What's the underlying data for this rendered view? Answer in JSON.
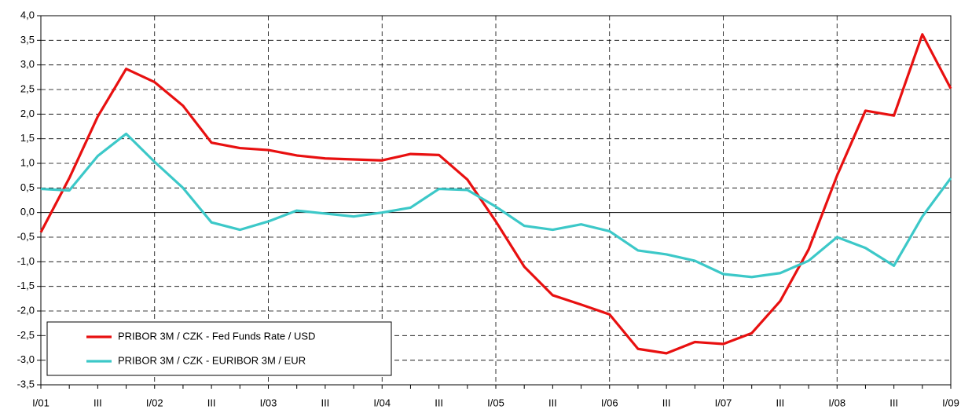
{
  "chart_data": {
    "type": "line",
    "categories": [
      "I/01",
      null,
      "III",
      null,
      "I/02",
      null,
      "III",
      null,
      "I/03",
      null,
      "III",
      null,
      "I/04",
      null,
      "III",
      null,
      "I/05",
      null,
      "III",
      null,
      "I/06",
      null,
      "III",
      null,
      "I/07",
      null,
      "III",
      null,
      "I/08",
      null,
      "III",
      null,
      "I/09"
    ],
    "series": [
      {
        "name": "PRIBOR 3M / CZK - Fed Funds Rate / USD",
        "color": "#e81010",
        "values": [
          -0.4,
          0.7,
          1.95,
          2.92,
          2.65,
          2.17,
          1.42,
          1.31,
          1.27,
          1.16,
          1.1,
          1.08,
          1.06,
          1.19,
          1.17,
          0.67,
          -0.18,
          -1.1,
          -1.68,
          -1.87,
          -2.07,
          -2.77,
          -2.86,
          -2.63,
          -2.67,
          -2.45,
          -1.8,
          -0.75,
          0.75,
          2.07,
          1.97,
          3.62,
          2.52
        ]
      },
      {
        "name": "PRIBOR 3M / CZK - EURIBOR 3M / EUR",
        "color": "#3cc8c8",
        "values": [
          0.48,
          0.45,
          1.15,
          1.6,
          1.03,
          0.5,
          -0.2,
          -0.35,
          -0.18,
          0.04,
          -0.02,
          -0.08,
          0.0,
          0.1,
          0.48,
          0.46,
          0.12,
          -0.27,
          -0.35,
          -0.24,
          -0.38,
          -0.77,
          -0.85,
          -0.98,
          -1.25,
          -1.31,
          -1.23,
          -0.98,
          -0.5,
          -0.72,
          -1.08,
          -0.08,
          0.7
        ]
      }
    ],
    "ylim": [
      -3.5,
      4.0
    ],
    "yticks": [
      {
        "value": -3.5,
        "label": "-3,5"
      },
      {
        "value": -3.0,
        "label": "-3,0"
      },
      {
        "value": -2.5,
        "label": "-2,5"
      },
      {
        "value": -2.0,
        "label": "-2,0"
      },
      {
        "value": -1.5,
        "label": "-1,5"
      },
      {
        "value": -1.0,
        "label": "-1,0"
      },
      {
        "value": -0.5,
        "label": "-0,5"
      },
      {
        "value": 0.0,
        "label": "0,0"
      },
      {
        "value": 0.5,
        "label": "0,5"
      },
      {
        "value": 1.0,
        "label": "1,0"
      },
      {
        "value": 1.5,
        "label": "1,5"
      },
      {
        "value": 2.0,
        "label": "2,0"
      },
      {
        "value": 2.5,
        "label": "2,5"
      },
      {
        "value": 3.0,
        "label": "3,0"
      },
      {
        "value": 3.5,
        "label": "3,5"
      },
      {
        "value": 4.0,
        "label": "4,0"
      }
    ],
    "grid": true,
    "legend": "lower left"
  }
}
